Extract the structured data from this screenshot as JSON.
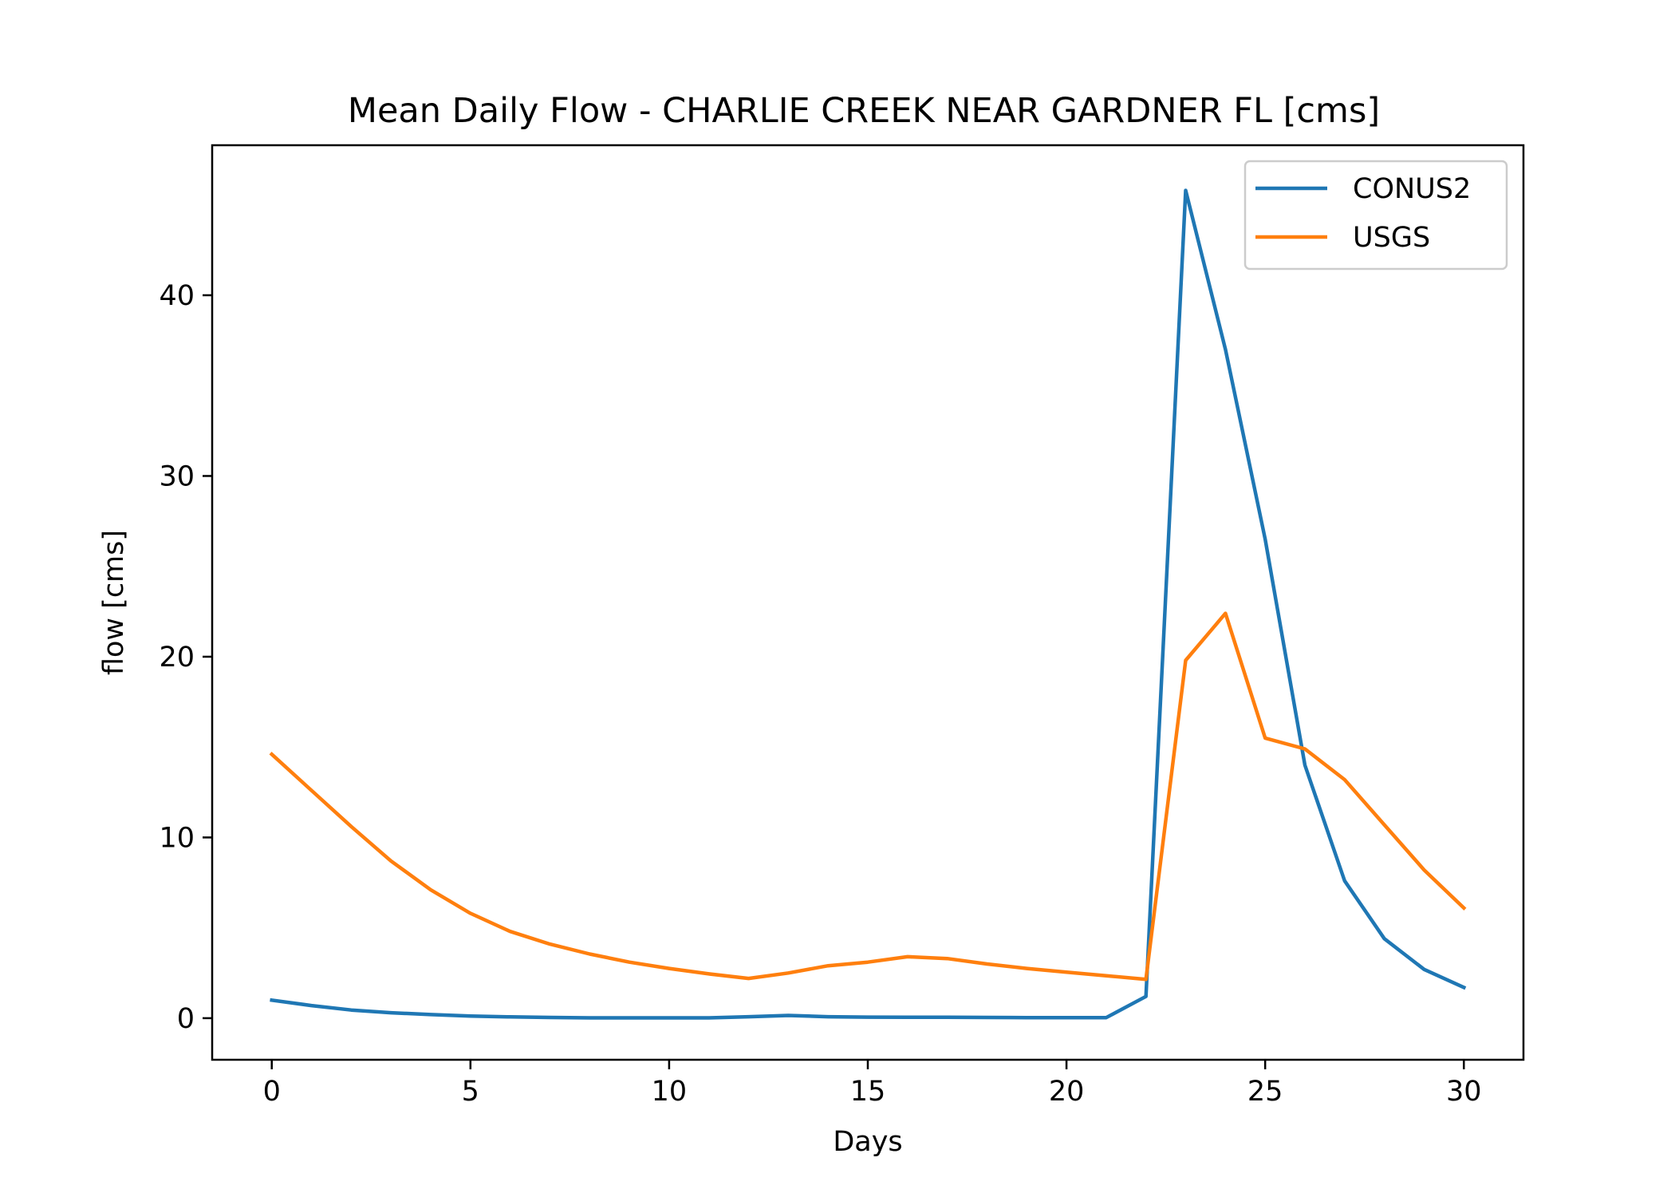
{
  "chart_data": {
    "type": "line",
    "title": "Mean Daily Flow - CHARLIE CREEK NEAR GARDNER FL [cms]",
    "xlabel": "Days",
    "ylabel": "flow [cms]",
    "xlim": [
      -1.5,
      31.5
    ],
    "ylim": [
      -2.3,
      48.3
    ],
    "xticks": [
      0,
      5,
      10,
      15,
      20,
      25,
      30
    ],
    "yticks": [
      0,
      10,
      20,
      30,
      40
    ],
    "grid": false,
    "legend_position": "upper-right",
    "x": [
      0,
      1,
      2,
      3,
      4,
      5,
      6,
      7,
      8,
      9,
      10,
      11,
      12,
      13,
      14,
      15,
      16,
      17,
      18,
      19,
      20,
      21,
      22,
      23,
      24,
      25,
      26,
      27,
      28,
      29,
      30
    ],
    "series": [
      {
        "name": "CONUS2",
        "color": "#1f77b4",
        "values": [
          1.0,
          0.7,
          0.45,
          0.3,
          0.2,
          0.12,
          0.07,
          0.04,
          0.02,
          0.02,
          0.02,
          0.02,
          0.08,
          0.15,
          0.08,
          0.06,
          0.05,
          0.05,
          0.04,
          0.03,
          0.03,
          0.03,
          1.2,
          45.8,
          37.0,
          26.5,
          14.0,
          7.6,
          4.4,
          2.7,
          1.7
        ]
      },
      {
        "name": "USGS",
        "color": "#ff7f0e",
        "values": [
          14.6,
          12.6,
          10.6,
          8.7,
          7.1,
          5.8,
          4.8,
          4.1,
          3.55,
          3.1,
          2.75,
          2.45,
          2.2,
          2.5,
          2.9,
          3.1,
          3.4,
          3.3,
          3.0,
          2.75,
          2.55,
          2.35,
          2.15,
          19.8,
          22.4,
          15.5,
          14.9,
          13.2,
          10.7,
          8.2,
          6.1
        ]
      }
    ]
  }
}
